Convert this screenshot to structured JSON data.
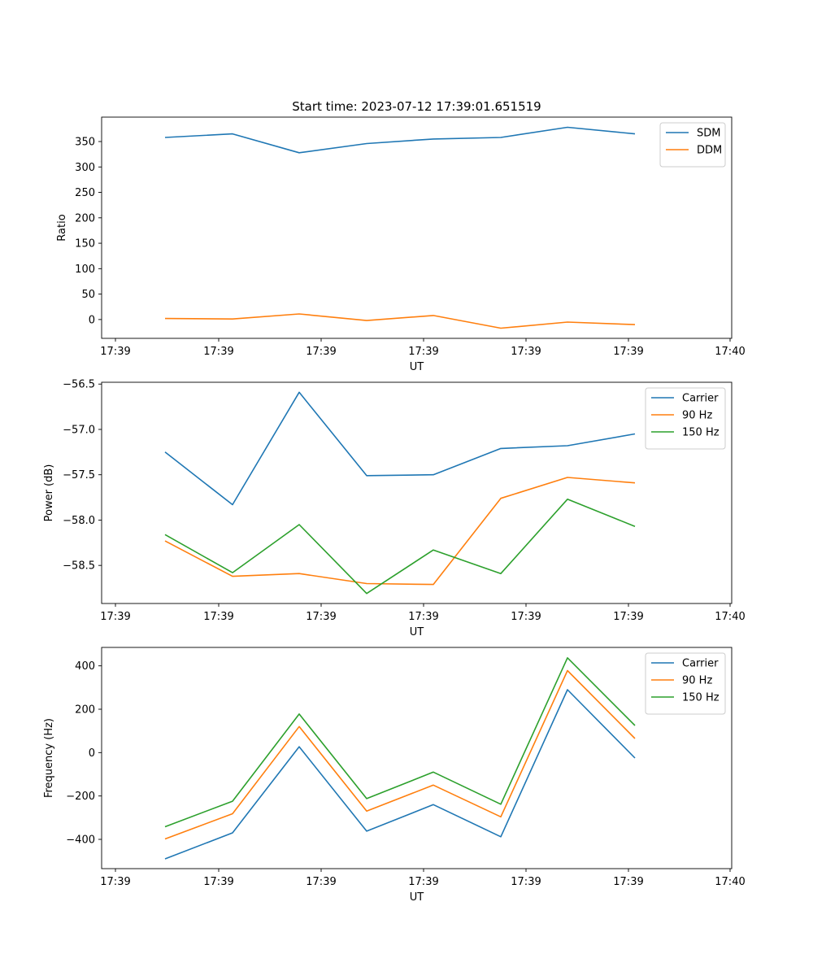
{
  "chart_data": [
    {
      "type": "line",
      "title": "Start time: 2023-07-12 17:39:01.651519",
      "xlabel": "UT",
      "ylabel": "Ratio",
      "x_tick_labels": [
        "17:39",
        "17:39",
        "17:39",
        "17:39",
        "17:39",
        "17:39",
        "17:39",
        "17:40"
      ],
      "ylim": [
        -37,
        398
      ],
      "y_ticks": [
        0,
        50,
        100,
        150,
        200,
        250,
        300,
        350
      ],
      "legend_location": "top-right",
      "series": [
        {
          "name": "SDM",
          "color": "#1f77b4",
          "values": [
            358,
            365,
            328,
            346,
            355,
            358,
            378,
            365
          ]
        },
        {
          "name": "DDM",
          "color": "#ff7f0e",
          "values": [
            2,
            1,
            11,
            -2,
            8,
            -17,
            -5,
            -10
          ]
        }
      ]
    },
    {
      "type": "line",
      "title": "",
      "xlabel": "UT",
      "ylabel": "Power (dB)",
      "x_tick_labels": [
        "17:39",
        "17:39",
        "17:39",
        "17:39",
        "17:39",
        "17:39",
        "17:39",
        "17:40"
      ],
      "ylim": [
        -58.92,
        -56.48
      ],
      "y_ticks": [
        -58.5,
        -58.0,
        -57.5,
        -57.0,
        -56.5
      ],
      "y_tick_labels": [
        "−58.5",
        "−58.0",
        "−57.5",
        "−57.0",
        "−56.5"
      ],
      "legend_location": "top-right",
      "series": [
        {
          "name": "Carrier",
          "color": "#1f77b4",
          "values": [
            -57.25,
            -57.83,
            -56.59,
            -57.51,
            -57.5,
            -57.21,
            -57.18,
            -57.05
          ]
        },
        {
          "name": "90 Hz",
          "color": "#ff7f0e",
          "values": [
            -58.23,
            -58.62,
            -58.59,
            -58.7,
            -58.71,
            -57.76,
            -57.53,
            -57.59
          ]
        },
        {
          "name": "150 Hz",
          "color": "#2ca02c",
          "values": [
            -58.16,
            -58.58,
            -58.05,
            -58.81,
            -58.33,
            -58.59,
            -57.77,
            -58.07
          ]
        }
      ]
    },
    {
      "type": "line",
      "title": "",
      "xlabel": "UT",
      "ylabel": "Frequency (Hz)",
      "x_tick_labels": [
        "17:39",
        "17:39",
        "17:39",
        "17:39",
        "17:39",
        "17:39",
        "17:39",
        "17:40"
      ],
      "ylim": [
        -535,
        485
      ],
      "y_ticks": [
        -400,
        -200,
        0,
        200,
        400
      ],
      "y_tick_labels": [
        "−400",
        "−200",
        "0",
        "200",
        "400"
      ],
      "legend_location": "top-right",
      "series": [
        {
          "name": "Carrier",
          "color": "#1f77b4",
          "values": [
            -490,
            -370,
            27,
            -362,
            -240,
            -388,
            290,
            -25
          ]
        },
        {
          "name": "90 Hz",
          "color": "#ff7f0e",
          "values": [
            -398,
            -282,
            120,
            -270,
            -150,
            -296,
            378,
            65
          ]
        },
        {
          "name": "150 Hz",
          "color": "#2ca02c",
          "values": [
            -342,
            -224,
            178,
            -212,
            -90,
            -238,
            437,
            125
          ]
        }
      ]
    }
  ]
}
